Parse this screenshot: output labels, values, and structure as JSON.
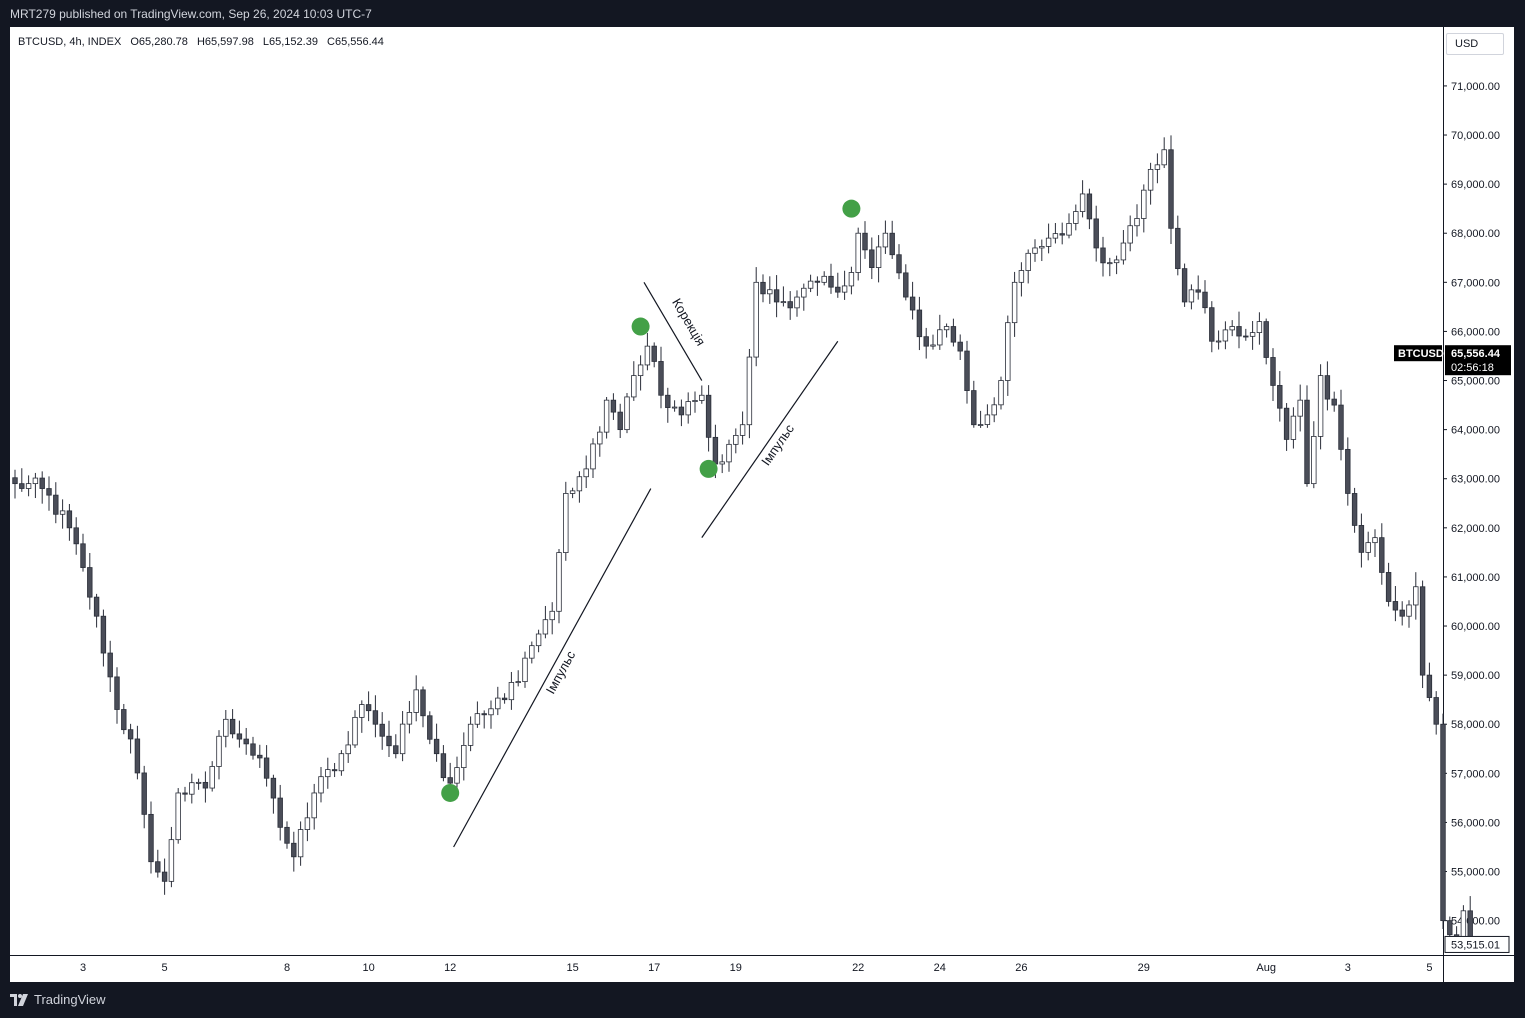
{
  "header": {
    "publish_line": "MRT279 published on TradingView.com, Sep 26, 2024 10:03 UTC-7"
  },
  "legend": {
    "symbol_line": "BTCUSD, 4h, INDEX",
    "open": "O65,280.78",
    "high": "H65,597.98",
    "low": "L65,152.39",
    "close": "C65,556.44"
  },
  "currency": "USD",
  "footer": {
    "brand": "TradingView"
  },
  "colors": {
    "background": "#131722",
    "chart_bg": "#ffffff",
    "candle_up": "#ffffff",
    "candle_down": "#4a4d58",
    "candle_border": "#2a2e39",
    "marker": "#43a047",
    "last_price_label": "#000000"
  },
  "chart_data": {
    "type": "candlestick",
    "symbol": "BTCUSD",
    "timeframe": "4h",
    "ylim": [
      53300,
      72200
    ],
    "y_ticks": [
      {
        "value": 54000,
        "label": "54,000.00"
      },
      {
        "value": 55000,
        "label": "55,000.00"
      },
      {
        "value": 56000,
        "label": "56,000.00"
      },
      {
        "value": 57000,
        "label": "57,000.00"
      },
      {
        "value": 58000,
        "label": "58,000.00"
      },
      {
        "value": 59000,
        "label": "59,000.00"
      },
      {
        "value": 60000,
        "label": "60,000.00"
      },
      {
        "value": 61000,
        "label": "61,000.00"
      },
      {
        "value": 62000,
        "label": "62,000.00"
      },
      {
        "value": 63000,
        "label": "63,000.00"
      },
      {
        "value": 64000,
        "label": "64,000.00"
      },
      {
        "value": 65000,
        "label": "65,000.00"
      },
      {
        "value": 66000,
        "label": "66,000.00"
      },
      {
        "value": 67000,
        "label": "67,000.00"
      },
      {
        "value": 68000,
        "label": "68,000.00"
      },
      {
        "value": 69000,
        "label": "69,000.00"
      },
      {
        "value": 70000,
        "label": "70,000.00"
      },
      {
        "value": 71000,
        "label": "71,000.00"
      }
    ],
    "x_ticks": [
      {
        "index": 10,
        "label": "3"
      },
      {
        "index": 22,
        "label": "5"
      },
      {
        "index": 40,
        "label": "8"
      },
      {
        "index": 52,
        "label": "10"
      },
      {
        "index": 64,
        "label": "12"
      },
      {
        "index": 82,
        "label": "15"
      },
      {
        "index": 94,
        "label": "17"
      },
      {
        "index": 106,
        "label": "19"
      },
      {
        "index": 124,
        "label": "22"
      },
      {
        "index": 136,
        "label": "24"
      },
      {
        "index": 148,
        "label": "26"
      },
      {
        "index": 166,
        "label": "29"
      },
      {
        "index": 184,
        "label": "Aug"
      },
      {
        "index": 196,
        "label": "3"
      },
      {
        "index": 208,
        "label": "5"
      }
    ],
    "last_price": {
      "symbol": "BTCUSD",
      "value": "65,556.44",
      "countdown": "02:56:18"
    },
    "crosshair_price": {
      "value": 53515.01,
      "label": "53,515.01"
    },
    "keypoints": [
      {
        "i": 0,
        "p": 62900
      },
      {
        "i": 4,
        "p": 62800
      },
      {
        "i": 8,
        "p": 62000
      },
      {
        "i": 12,
        "p": 60200
      },
      {
        "i": 15,
        "p": 58300
      },
      {
        "i": 17,
        "p": 57700
      },
      {
        "i": 20,
        "p": 55200
      },
      {
        "i": 22,
        "p": 54800
      },
      {
        "i": 24,
        "p": 56600
      },
      {
        "i": 28,
        "p": 56700
      },
      {
        "i": 31,
        "p": 58100
      },
      {
        "i": 34,
        "p": 57600
      },
      {
        "i": 37,
        "p": 56900
      },
      {
        "i": 39,
        "p": 55900
      },
      {
        "i": 41,
        "p": 55300
      },
      {
        "i": 44,
        "p": 56600
      },
      {
        "i": 48,
        "p": 57400
      },
      {
        "i": 51,
        "p": 58400
      },
      {
        "i": 53,
        "p": 58000
      },
      {
        "i": 56,
        "p": 57400
      },
      {
        "i": 59,
        "p": 58700
      },
      {
        "i": 62,
        "p": 57400
      },
      {
        "i": 64,
        "p": 56800
      },
      {
        "i": 67,
        "p": 58000
      },
      {
        "i": 72,
        "p": 58500
      },
      {
        "i": 76,
        "p": 59600
      },
      {
        "i": 79,
        "p": 60300
      },
      {
        "i": 81,
        "p": 62700
      },
      {
        "i": 84,
        "p": 63200
      },
      {
        "i": 87,
        "p": 64600
      },
      {
        "i": 89,
        "p": 64000
      },
      {
        "i": 91,
        "p": 65100
      },
      {
        "i": 93,
        "p": 65700
      },
      {
        "i": 95,
        "p": 64700
      },
      {
        "i": 98,
        "p": 64300
      },
      {
        "i": 101,
        "p": 64700
      },
      {
        "i": 103,
        "p": 63300
      },
      {
        "i": 105,
        "p": 63700
      },
      {
        "i": 107,
        "p": 64100
      },
      {
        "i": 109,
        "p": 67000
      },
      {
        "i": 112,
        "p": 66600
      },
      {
        "i": 115,
        "p": 66700
      },
      {
        "i": 118,
        "p": 67000
      },
      {
        "i": 121,
        "p": 66800
      },
      {
        "i": 123,
        "p": 67200
      },
      {
        "i": 124,
        "p": 68000
      },
      {
        "i": 126,
        "p": 67300
      },
      {
        "i": 128,
        "p": 68000
      },
      {
        "i": 131,
        "p": 66700
      },
      {
        "i": 134,
        "p": 65700
      },
      {
        "i": 137,
        "p": 66100
      },
      {
        "i": 139,
        "p": 65600
      },
      {
        "i": 141,
        "p": 64100
      },
      {
        "i": 143,
        "p": 64300
      },
      {
        "i": 145,
        "p": 65000
      },
      {
        "i": 147,
        "p": 67000
      },
      {
        "i": 150,
        "p": 67700
      },
      {
        "i": 152,
        "p": 67900
      },
      {
        "i": 155,
        "p": 68200
      },
      {
        "i": 157,
        "p": 68800
      },
      {
        "i": 159,
        "p": 67700
      },
      {
        "i": 161,
        "p": 67400
      },
      {
        "i": 163,
        "p": 67800
      },
      {
        "i": 165,
        "p": 68300
      },
      {
        "i": 167,
        "p": 69300
      },
      {
        "i": 169,
        "p": 69700
      },
      {
        "i": 170,
        "p": 68100
      },
      {
        "i": 172,
        "p": 66600
      },
      {
        "i": 174,
        "p": 66800
      },
      {
        "i": 176,
        "p": 65800
      },
      {
        "i": 179,
        "p": 66100
      },
      {
        "i": 181,
        "p": 65900
      },
      {
        "i": 183,
        "p": 66200
      },
      {
        "i": 185,
        "p": 64900
      },
      {
        "i": 187,
        "p": 63800
      },
      {
        "i": 189,
        "p": 64600
      },
      {
        "i": 190,
        "p": 62900
      },
      {
        "i": 192,
        "p": 65100
      },
      {
        "i": 194,
        "p": 64500
      },
      {
        "i": 196,
        "p": 62700
      },
      {
        "i": 198,
        "p": 61500
      },
      {
        "i": 200,
        "p": 61800
      },
      {
        "i": 202,
        "p": 60500
      },
      {
        "i": 204,
        "p": 60200
      },
      {
        "i": 206,
        "p": 60800
      },
      {
        "i": 207,
        "p": 59000
      },
      {
        "i": 209,
        "p": 58000
      },
      {
        "i": 210,
        "p": 54000
      },
      {
        "i": 212,
        "p": 53600
      },
      {
        "i": 213,
        "p": 54200
      },
      {
        "i": 214,
        "p": 53515
      }
    ],
    "marker_points": [
      {
        "i": 64,
        "p": 56600
      },
      {
        "i": 92,
        "p": 66100
      },
      {
        "i": 102,
        "p": 63200
      },
      {
        "i": 123,
        "p": 68500
      }
    ],
    "annotations": [
      {
        "text": "Імпульс",
        "start": {
          "i": 64.5,
          "p": 55500
        },
        "end": {
          "i": 93.5,
          "p": 62800
        }
      },
      {
        "text": "Корекція",
        "start": {
          "i": 92.5,
          "p": 67000
        },
        "end": {
          "i": 101,
          "p": 65000
        }
      },
      {
        "text": "Імпульс",
        "start": {
          "i": 101,
          "p": 61800
        },
        "end": {
          "i": 121,
          "p": 65800
        }
      }
    ]
  }
}
